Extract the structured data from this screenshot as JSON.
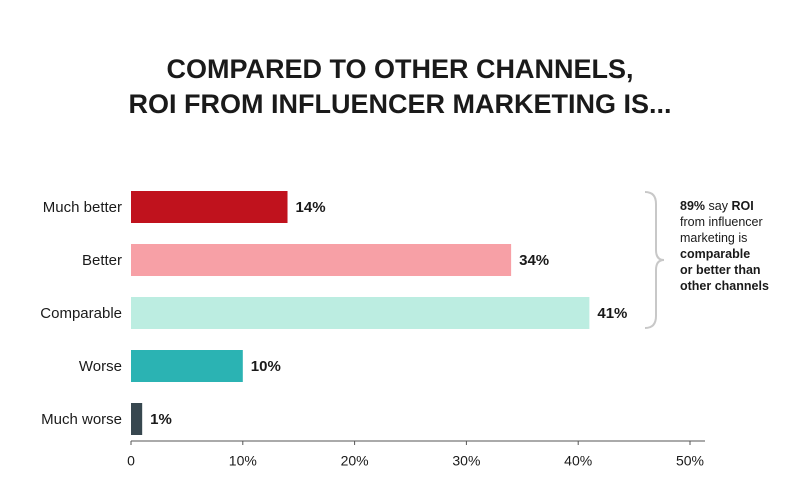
{
  "chart_data": {
    "type": "bar",
    "orientation": "horizontal",
    "title": [
      "COMPARED TO OTHER CHANNELS,",
      "ROI FROM INFLUENCER MARKETING IS..."
    ],
    "categories": [
      "Much better",
      "Better",
      "Comparable",
      "Worse",
      "Much worse"
    ],
    "values": [
      14,
      34,
      41,
      10,
      1
    ],
    "value_labels": [
      "14%",
      "34%",
      "41%",
      "10%",
      "1%"
    ],
    "colors": [
      "#c0121d",
      "#f7a0a6",
      "#bcede1",
      "#2bb3b3",
      "#37474f"
    ],
    "xlim": [
      0,
      50
    ],
    "xticks": [
      0,
      {
        "value": 10,
        "label": "10%"
      },
      {
        "value": 20,
        "label": "20%"
      },
      {
        "value": 30,
        "label": "30%"
      },
      {
        "value": 40,
        "label": "40%"
      },
      {
        "value": 50,
        "label": "50%"
      }
    ],
    "grid": false,
    "annotation": [
      [
        {
          "text": "89%",
          "bold": true
        },
        {
          "text": " say ",
          "bold": false
        },
        {
          "text": "ROI",
          "bold": true
        }
      ],
      [
        {
          "text": "from influencer",
          "bold": false
        }
      ],
      [
        {
          "text": "marketing is",
          "bold": false
        }
      ],
      [
        {
          "text": "comparable",
          "bold": true
        }
      ],
      [
        {
          "text": "or better than",
          "bold": true
        }
      ],
      [
        {
          "text": "other channels",
          "bold": true
        }
      ]
    ]
  }
}
